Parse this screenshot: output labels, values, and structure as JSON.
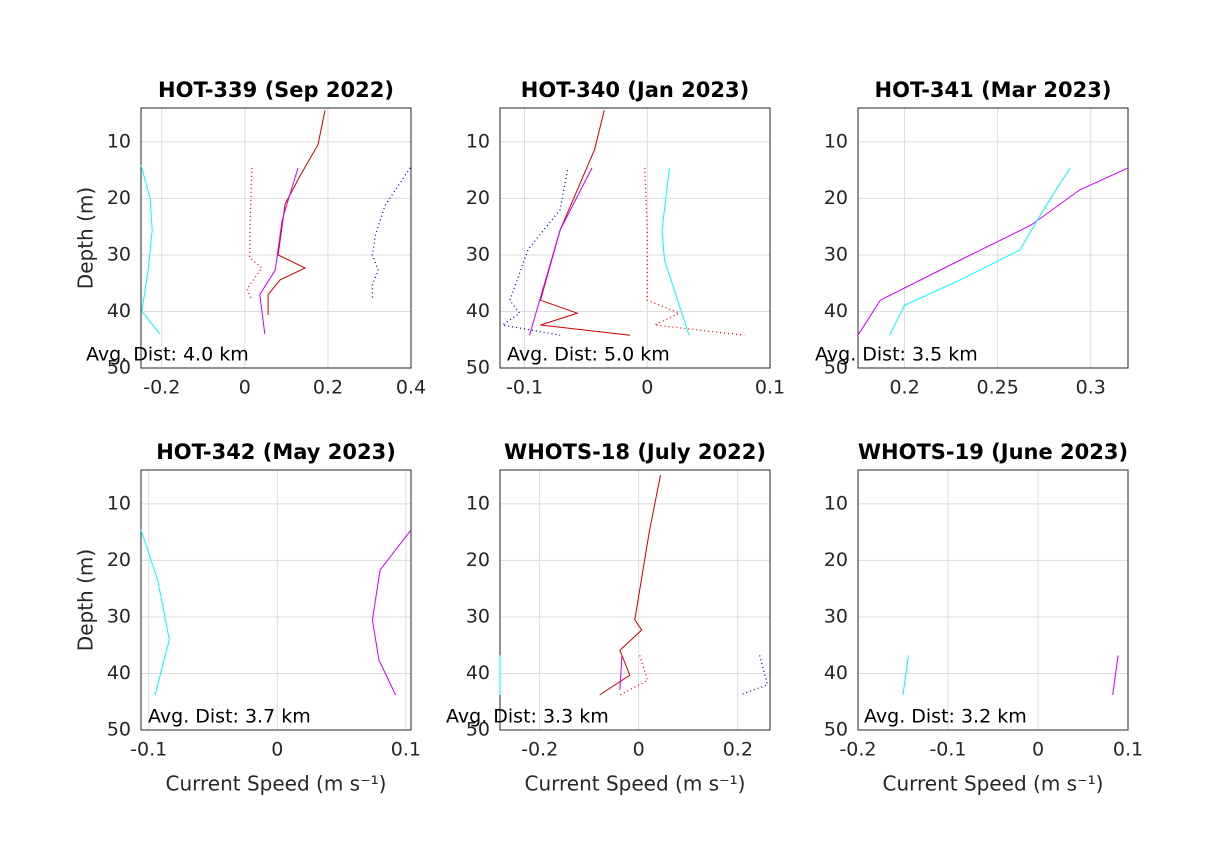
{
  "chart_data": [
    {
      "type": "line",
      "title": "HOT-339 (Sep 2022)",
      "ylabel": "Depth (m)",
      "annotation": "Avg. Dist: 4.0 km",
      "xlim": [
        -0.25,
        0.4
      ],
      "ylim": [
        4,
        50
      ],
      "y_reversed": true,
      "xticks": [
        -0.2,
        0,
        0.2,
        0.4
      ],
      "yticks": [
        10,
        20,
        30,
        40,
        50
      ],
      "grid": true,
      "series": [
        {
          "color": "#00ffff",
          "style": "solid",
          "x": [
            -0.25,
            -0.228,
            -0.223,
            -0.233,
            -0.248,
            -0.204
          ],
          "y": [
            14.1,
            20,
            25.6,
            32.7,
            40,
            44
          ]
        },
        {
          "color": "#ff0000",
          "style": "dotted",
          "x": [
            0.017,
            0.012,
            0.012,
            0.041,
            0.005,
            0.017
          ],
          "y": [
            14.6,
            25.6,
            30.5,
            32.3,
            36,
            38
          ]
        },
        {
          "color": "#cc0000",
          "style": "solid",
          "x": [
            0.193,
            0.176,
            0.133,
            0.097,
            0.08,
            0.145,
            0.085,
            0.056,
            0.056
          ],
          "y": [
            4.4,
            10.5,
            16,
            21,
            30,
            32.3,
            34.4,
            37,
            40.6
          ]
        },
        {
          "color": "#cc00ff",
          "style": "solid",
          "x": [
            0.128,
            0.09,
            0.073,
            0.036,
            0.048
          ],
          "y": [
            14.6,
            23.8,
            32.7,
            37,
            44
          ]
        },
        {
          "color": "#0000cc",
          "style": "dotted",
          "x": [
            0.398,
            0.338,
            0.314,
            0.307,
            0.321,
            0.307,
            0.307
          ],
          "y": [
            14.6,
            21.2,
            26.5,
            30,
            32.7,
            35.3,
            38
          ]
        }
      ]
    },
    {
      "type": "line",
      "title": "HOT-340 (Jan 2023)",
      "annotation": "Avg. Dist: 5.0 km",
      "xlim": [
        -0.12,
        0.1
      ],
      "ylim": [
        4,
        50
      ],
      "y_reversed": true,
      "xticks": [
        -0.1,
        0,
        0.1
      ],
      "yticks": [
        10,
        20,
        30,
        40,
        50
      ],
      "grid": true,
      "series": [
        {
          "color": "#0000cc",
          "style": "dotted",
          "x": [
            -0.065,
            -0.071,
            -0.097,
            -0.112,
            -0.104,
            -0.118,
            -0.071
          ],
          "y": [
            15,
            22,
            29,
            38,
            40.3,
            42.4,
            44.2
          ]
        },
        {
          "color": "#00ffff",
          "style": "solid",
          "x": [
            0.018,
            0.012,
            0.014,
            0.034
          ],
          "y": [
            14.6,
            25.6,
            30.9,
            44.2
          ]
        },
        {
          "color": "#ff0000",
          "style": "dotted",
          "x": [
            -0.002,
            0,
            0,
            0.026,
            0.006,
            0.079
          ],
          "y": [
            14.6,
            25.6,
            38,
            40.3,
            42.4,
            44.2
          ]
        },
        {
          "color": "#cc0000",
          "style": "solid",
          "x": [
            -0.035,
            -0.043,
            -0.071,
            -0.087,
            -0.057,
            -0.087,
            -0.014
          ],
          "y": [
            4.4,
            11.4,
            25.6,
            38,
            40.3,
            42.4,
            44.2
          ]
        },
        {
          "color": "#cc00ff",
          "style": "solid",
          "x": [
            -0.045,
            -0.071,
            -0.096
          ],
          "y": [
            14.6,
            25.6,
            44.2
          ]
        }
      ]
    },
    {
      "type": "line",
      "title": "HOT-341 (Mar 2023)",
      "annotation": "Avg. Dist: 3.5 km",
      "xlim": [
        0.175,
        0.32
      ],
      "ylim": [
        4,
        50
      ],
      "y_reversed": true,
      "xticks": [
        0.2,
        0.25,
        0.3
      ],
      "yticks": [
        10,
        20,
        30,
        40,
        50
      ],
      "grid": true,
      "series": [
        {
          "color": "#cc00ff",
          "style": "solid",
          "x": [
            0.32,
            0.294,
            0.268,
            0.23,
            0.187,
            0.175
          ],
          "y": [
            14.6,
            18.5,
            24.7,
            30.9,
            38,
            44.2
          ]
        },
        {
          "color": "#00ffff",
          "style": "solid",
          "x": [
            0.289,
            0.283,
            0.273,
            0.262,
            0.23,
            0.2,
            0.192
          ],
          "y": [
            14.6,
            17.6,
            22.9,
            29.1,
            34.4,
            38.9,
            44.2
          ]
        }
      ]
    },
    {
      "type": "line",
      "title": "HOT-342 (May 2023)",
      "ylabel": "Depth (m)",
      "xlabel": "Current Speed (m s⁻¹)",
      "annotation": "Avg. Dist: 3.7 km",
      "xlim": [
        -0.106,
        0.104
      ],
      "ylim": [
        4,
        50
      ],
      "y_reversed": true,
      "xticks": [
        -0.1,
        0,
        0.1
      ],
      "yticks": [
        10,
        20,
        30,
        40,
        50
      ],
      "grid": true,
      "series": [
        {
          "color": "#00ffff",
          "style": "solid",
          "x": [
            -0.106,
            -0.093,
            -0.084,
            -0.095
          ],
          "y": [
            14.6,
            23.5,
            34,
            43.8
          ]
        },
        {
          "color": "#cc00ff",
          "style": "solid",
          "x": [
            0.104,
            0.08,
            0.074,
            0.079,
            0.092
          ],
          "y": [
            14.6,
            21.7,
            30.5,
            37.6,
            43.8
          ]
        }
      ]
    },
    {
      "type": "line",
      "title": "WHOTS-18 (July 2022)",
      "xlabel": "Current Speed (m s⁻¹)",
      "annotation": "Avg. Dist: 3.3 km",
      "xlim": [
        -0.28,
        0.265
      ],
      "ylim": [
        4,
        50
      ],
      "y_reversed": true,
      "xticks": [
        -0.2,
        0,
        0.2
      ],
      "yticks": [
        10,
        20,
        30,
        40,
        50
      ],
      "grid": true,
      "series": [
        {
          "color": "#cc0000",
          "style": "solid",
          "x": [
            0.044,
            0.022,
            -0.008,
            0.006,
            -0.038,
            -0.018,
            -0.079
          ],
          "y": [
            4.9,
            14.6,
            30.5,
            32.3,
            35.9,
            40.3,
            43.8
          ]
        },
        {
          "color": "#cc00ff",
          "style": "solid",
          "x": [
            -0.034,
            -0.038
          ],
          "y": [
            36.8,
            42.9
          ]
        },
        {
          "color": "#ff0000",
          "style": "dotted",
          "x": [
            0.002,
            0.018,
            -0.038
          ],
          "y": [
            36.8,
            41.2,
            43.8
          ]
        },
        {
          "color": "#00ffff",
          "style": "solid",
          "x": [
            -0.28,
            -0.28
          ],
          "y": [
            36.8,
            43.8
          ]
        },
        {
          "color": "#0000cc",
          "style": "dotted",
          "x": [
            0.244,
            0.26,
            0.204
          ],
          "y": [
            36.8,
            42,
            43.8
          ]
        }
      ]
    },
    {
      "type": "line",
      "title": "WHOTS-19 (June 2023)",
      "xlabel": "Current Speed (m s⁻¹)",
      "annotation": "Avg. Dist: 3.2 km",
      "xlim": [
        -0.2,
        0.1
      ],
      "ylim": [
        4,
        50
      ],
      "y_reversed": true,
      "xticks": [
        -0.2,
        -0.1,
        0,
        0.1
      ],
      "yticks": [
        10,
        20,
        30,
        40,
        50
      ],
      "grid": true,
      "series": [
        {
          "color": "#00ffff",
          "style": "solid",
          "x": [
            -0.144,
            -0.15
          ],
          "y": [
            36.8,
            43.8
          ]
        },
        {
          "color": "#cc00ff",
          "style": "solid",
          "x": [
            0.089,
            0.083
          ],
          "y": [
            36.8,
            43.8
          ]
        }
      ]
    }
  ]
}
